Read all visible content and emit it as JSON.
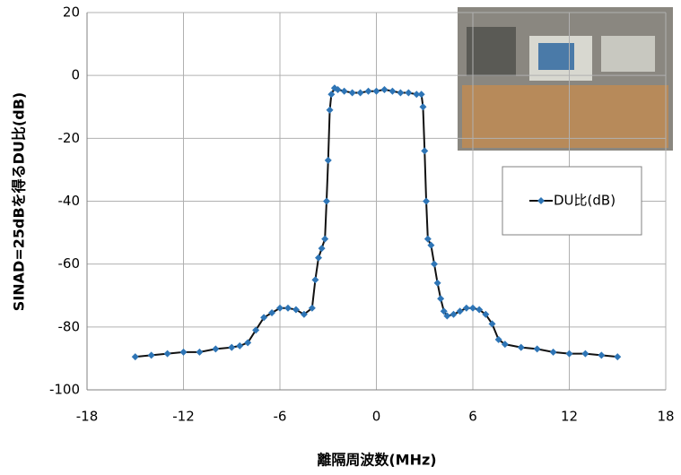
{
  "chart_data": {
    "type": "line",
    "x_label": "離隔周波数(MHz)",
    "y_label": "SINAD=25dBを得るDU比(dB)",
    "x": [
      -15,
      -14,
      -13,
      -12,
      -11,
      -10,
      -9,
      -8.5,
      -8,
      -7.5,
      -7,
      -6.5,
      -6,
      -5.5,
      -5,
      -4.5,
      -4,
      -3.8,
      -3.6,
      -3.4,
      -3.2,
      -3.1,
      -3,
      -2.9,
      -2.8,
      -2.6,
      -2.4,
      -2,
      -1.5,
      -1,
      -0.5,
      0,
      0.5,
      1,
      1.5,
      2,
      2.5,
      2.8,
      2.9,
      3,
      3.1,
      3.2,
      3.4,
      3.6,
      3.8,
      4,
      4.2,
      4.4,
      4.8,
      5.2,
      5.6,
      6,
      6.4,
      6.8,
      7.2,
      7.6,
      8,
      9,
      10,
      11,
      12,
      13,
      14,
      15
    ],
    "series": [
      {
        "name": "DU比(dB)",
        "color": "#2e75b6",
        "values": [
          -89.5,
          -89,
          -88.5,
          -88,
          -88,
          -87,
          -86.5,
          -86,
          -85,
          -81,
          -77,
          -75.5,
          -74,
          -74,
          -74.5,
          -76,
          -74,
          -65,
          -58,
          -55,
          -52,
          -40,
          -27,
          -11,
          -6,
          -4,
          -4.5,
          -5,
          -5.5,
          -5.5,
          -5,
          -5,
          -4.5,
          -5,
          -5.5,
          -5.5,
          -6,
          -6,
          -10,
          -24,
          -40,
          -52,
          -54,
          -60,
          -66,
          -71,
          -75,
          -76.5,
          -76,
          -75,
          -74,
          -74,
          -74.5,
          -76,
          -79,
          -84,
          -85.5,
          -86.5,
          -87,
          -88,
          -88.5,
          -88.5,
          -89,
          -89.5
        ]
      }
    ],
    "xlim": [
      -18,
      18
    ],
    "xticks": [
      -18,
      -12,
      -6,
      0,
      6,
      12,
      18
    ],
    "ylim": [
      -100,
      20
    ],
    "yticks": [
      -100,
      -80,
      -60,
      -40,
      -20,
      0,
      20
    ],
    "grid": true,
    "line_color": "#111111",
    "legend_position": "right"
  }
}
